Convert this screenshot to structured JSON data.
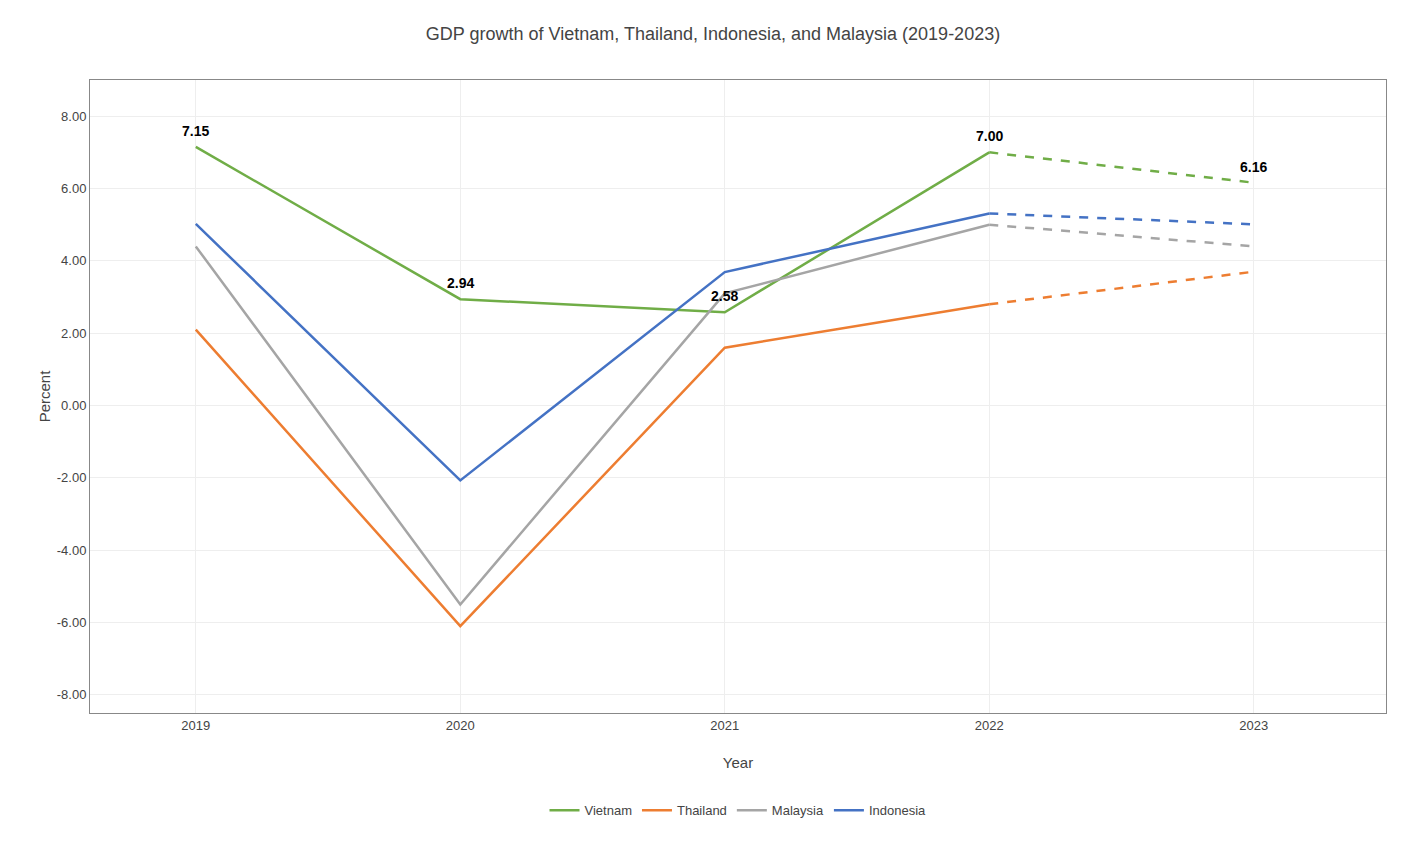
{
  "chart_data": {
    "type": "line",
    "title": "GDP growth of Vietnam, Thailand, Indonesia, and Malaysia (2019-2023)",
    "x_label": "Year",
    "y_label": "Percent",
    "x": [
      2019,
      2020,
      2021,
      2022,
      2023
    ],
    "series": [
      {
        "name": "Vietnam",
        "color": "#70ad47",
        "line_style": "solid",
        "values": [
          7.15,
          2.94,
          2.58,
          7.0,
          null
        ]
      },
      {
        "name": "Vietnam",
        "color": "#70ad47",
        "line_style": "dashed",
        "values": [
          null,
          null,
          null,
          7.0,
          6.16
        ]
      },
      {
        "name": "Thailand",
        "color": "#ed7d31",
        "line_style": "solid",
        "values": [
          2.1,
          -6.1,
          1.6,
          2.8,
          null
        ]
      },
      {
        "name": "Thailand",
        "color": "#ed7d31",
        "line_style": "dashed",
        "values": [
          null,
          null,
          null,
          2.8,
          3.7
        ]
      },
      {
        "name": "Malaysia",
        "color": "#a5a5a5",
        "line_style": "solid",
        "values": [
          4.4,
          -5.5,
          3.1,
          5.0,
          null
        ]
      },
      {
        "name": "Malaysia",
        "color": "#a5a5a5",
        "line_style": "dashed",
        "values": [
          null,
          null,
          null,
          5.0,
          4.4
        ]
      },
      {
        "name": "Indonesia",
        "color": "#4472c4",
        "line_style": "solid",
        "values": [
          5.02,
          -2.07,
          3.69,
          5.31,
          null
        ]
      },
      {
        "name": "Indonesia",
        "color": "#4472c4",
        "line_style": "dashed",
        "values": [
          null,
          null,
          null,
          5.31,
          5.01
        ]
      }
    ],
    "annotations": [
      {
        "x": 2019,
        "y": 7.15,
        "text": "7.15"
      },
      {
        "x": 2020,
        "y": 2.94,
        "text": "2.94"
      },
      {
        "x": 2021,
        "y": 2.58,
        "text": "2.58"
      },
      {
        "x": 2022,
        "y": 7.0,
        "text": "7.00"
      },
      {
        "x": 2023,
        "y": 6.16,
        "text": "6.16"
      }
    ],
    "xlim": [
      2018.6,
      2023.5
    ],
    "xticks": [
      2019,
      2020,
      2021,
      2022,
      2023
    ],
    "ylim": [
      -8.5,
      9.0
    ],
    "yticks": [
      {
        "value": -8.0,
        "label": "-8.00"
      },
      {
        "value": -6.0,
        "label": "-6.00"
      },
      {
        "value": -4.0,
        "label": "-4.00"
      },
      {
        "value": -2.0,
        "label": "-2.00"
      },
      {
        "value": 0.0,
        "label": "0.00"
      },
      {
        "value": 2.0,
        "label": "2.00"
      },
      {
        "value": 4.0,
        "label": "4.00"
      },
      {
        "value": 6.0,
        "label": "6.00"
      },
      {
        "value": 8.0,
        "label": "8.00"
      }
    ],
    "grid": true,
    "legend": "bottom"
  }
}
